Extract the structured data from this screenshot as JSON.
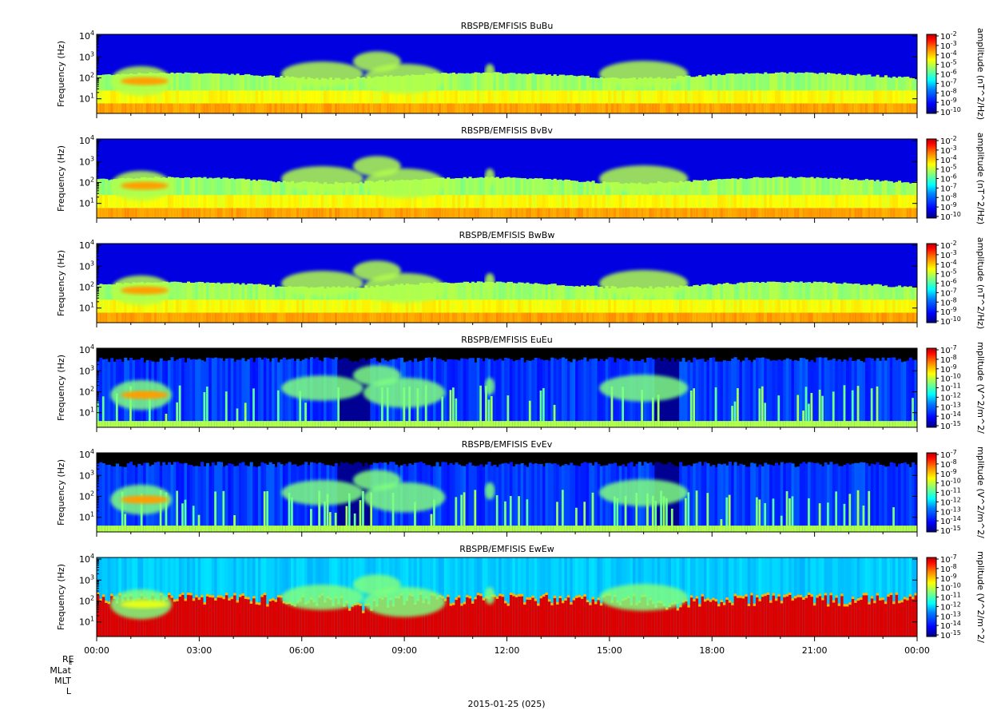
{
  "chart_data": {
    "type": "heatmap",
    "x_axis": {
      "tick_labels": [
        "00:00",
        "03:00",
        "06:00",
        "09:00",
        "12:00",
        "15:00",
        "18:00",
        "21:00",
        "00:00"
      ],
      "range_hours": [
        0,
        24
      ],
      "minor_tick_hours": 1
    },
    "date_label": "2015-01-25 (025)",
    "ephemeris_labels": [
      "RE",
      "MLat",
      "MLT",
      "L"
    ],
    "y_scale": "log",
    "y_range_hz": [
      2,
      12000
    ],
    "colormap": [
      "#00007f",
      "#0000ff",
      "#007fff",
      "#00ffff",
      "#7fff7f",
      "#ffff00",
      "#ff7f00",
      "#ff0000",
      "#b00000"
    ],
    "panels": [
      {
        "title": "RBSPB/EMFISIS  BuBu",
        "ylabel": "Frequency (Hz)",
        "y_ticks": [
          "10",
          "10",
          "10",
          "10"
        ],
        "y_tick_exponents": [
          "1",
          "2",
          "3",
          "4"
        ],
        "colorbar_label": "amplitude (nT^2/Hz)",
        "colorbar_ticks": [
          "10",
          "10",
          "10",
          "10",
          "10",
          "10",
          "10",
          "10",
          "10"
        ],
        "colorbar_exponents": [
          "-2",
          "-3",
          "-4",
          "-5",
          "-6",
          "-7",
          "-8",
          "-9",
          "-10"
        ],
        "style": "magnetic"
      },
      {
        "title": "RBSPB/EMFISIS  BvBv",
        "ylabel": "Frequency (Hz)",
        "y_ticks": [
          "10",
          "10",
          "10",
          "10"
        ],
        "y_tick_exponents": [
          "1",
          "2",
          "3",
          "4"
        ],
        "colorbar_label": "amplitude (nT^2/Hz)",
        "colorbar_ticks": [
          "10",
          "10",
          "10",
          "10",
          "10",
          "10",
          "10",
          "10",
          "10"
        ],
        "colorbar_exponents": [
          "-2",
          "-3",
          "-4",
          "-5",
          "-6",
          "-7",
          "-8",
          "-9",
          "-10"
        ],
        "style": "magnetic"
      },
      {
        "title": "RBSPB/EMFISIS  BwBw",
        "ylabel": "Frequency (Hz)",
        "y_ticks": [
          "10",
          "10",
          "10",
          "10"
        ],
        "y_tick_exponents": [
          "1",
          "2",
          "3",
          "4"
        ],
        "colorbar_label": "amplitude (nT^2/Hz)",
        "colorbar_ticks": [
          "10",
          "10",
          "10",
          "10",
          "10",
          "10",
          "10",
          "10",
          "10"
        ],
        "colorbar_exponents": [
          "-2",
          "-3",
          "-4",
          "-5",
          "-6",
          "-7",
          "-8",
          "-9",
          "-10"
        ],
        "style": "magnetic"
      },
      {
        "title": "RBSPB/EMFISIS  EuEu",
        "ylabel": "Frequency (Hz)",
        "y_ticks": [
          "10",
          "10",
          "10",
          "10"
        ],
        "y_tick_exponents": [
          "1",
          "2",
          "3",
          "4"
        ],
        "colorbar_label": "mplitude (V^2/m^2/",
        "colorbar_ticks": [
          "10",
          "10",
          "10",
          "10",
          "10",
          "10",
          "10",
          "10",
          "10"
        ],
        "colorbar_exponents": [
          "-7",
          "-8",
          "-9",
          "-10",
          "-11",
          "-12",
          "-13",
          "-14",
          "-15"
        ],
        "style": "electric"
      },
      {
        "title": "RBSPB/EMFISIS  EvEv",
        "ylabel": "Frequency (Hz)",
        "y_ticks": [
          "10",
          "10",
          "10",
          "10"
        ],
        "y_tick_exponents": [
          "1",
          "2",
          "3",
          "4"
        ],
        "colorbar_label": "mplitude (V^2/m^2/",
        "colorbar_ticks": [
          "10",
          "10",
          "10",
          "10",
          "10",
          "10",
          "10",
          "10",
          "10"
        ],
        "colorbar_exponents": [
          "-7",
          "-8",
          "-9",
          "-10",
          "-11",
          "-12",
          "-13",
          "-14",
          "-15"
        ],
        "style": "electric"
      },
      {
        "title": "RBSPB/EMFISIS  EwEw",
        "ylabel": "Frequency (Hz)",
        "y_ticks": [
          "10",
          "10",
          "10",
          "10"
        ],
        "y_tick_exponents": [
          "1",
          "2",
          "3",
          "4"
        ],
        "colorbar_label": "mplitude (V^2/m^2/",
        "colorbar_ticks": [
          "10",
          "10",
          "10",
          "10",
          "10",
          "10",
          "10",
          "10",
          "10"
        ],
        "colorbar_exponents": [
          "-7",
          "-8",
          "-9",
          "-10",
          "-11",
          "-12",
          "-13",
          "-14",
          "-15"
        ],
        "style": "noisy"
      }
    ]
  }
}
